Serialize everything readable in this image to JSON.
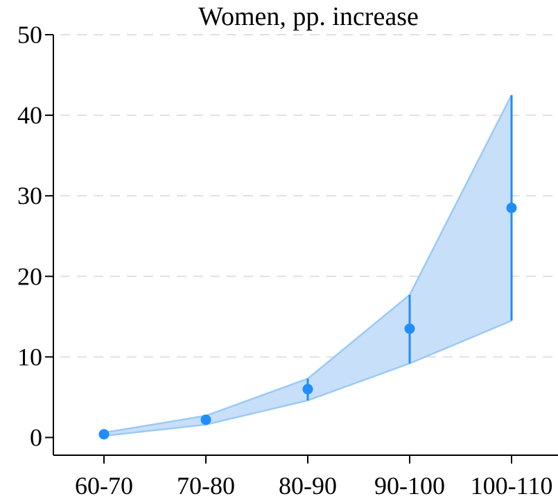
{
  "chart_data": {
    "type": "line",
    "title": "Women, pp. increase",
    "xlabel": "",
    "ylabel": "",
    "categories": [
      "60-70",
      "70-80",
      "80-90",
      "90-100",
      "100-110"
    ],
    "series": [
      {
        "values": [
          0.4,
          2.2,
          6.0,
          13.5,
          28.5
        ],
        "lower": [
          0.2,
          1.6,
          4.6,
          9.2,
          14.5
        ],
        "upper": [
          0.6,
          2.7,
          7.3,
          17.7,
          42.5
        ]
      }
    ],
    "y_ticks": [
      "0",
      "10",
      "20",
      "30",
      "40",
      "50"
    ],
    "ylim": [
      -2.2,
      50
    ],
    "grid": true,
    "legend": "none",
    "colors": {
      "point": "#1f8efa",
      "band_fill": "#c7dff9",
      "band_edge": "#9cc9f6",
      "grid": "#e0e0e0"
    }
  }
}
